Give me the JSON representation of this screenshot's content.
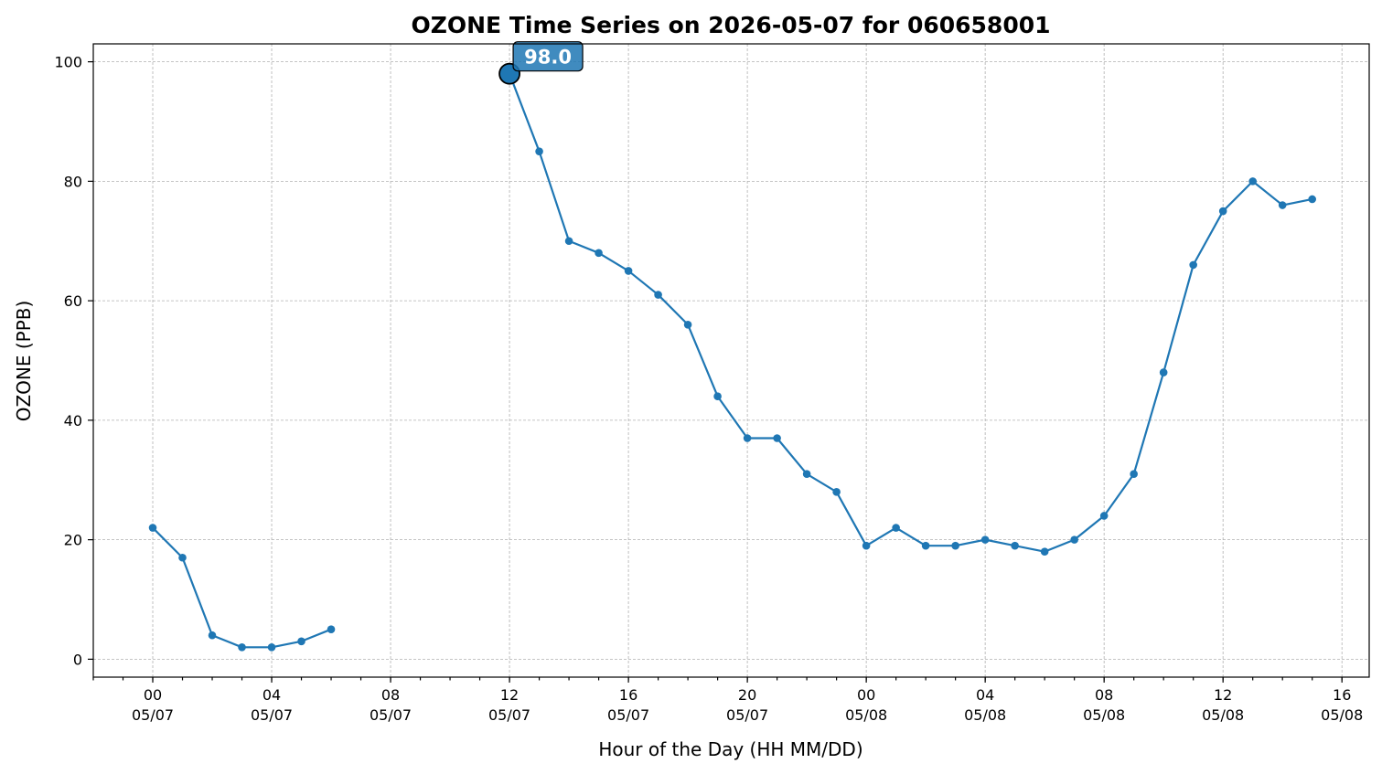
{
  "chart_data": {
    "type": "line",
    "title": "OZONE Time Series on 2026-05-07 for 060658001",
    "xlabel": "Hour of the Day (HH MM/DD)",
    "ylabel": "OZONE (PPB)",
    "ylim": [
      -3,
      103
    ],
    "xlim": [
      "2026-05-06 22:00",
      "2026-05-08 16:55"
    ],
    "yticks": [
      0,
      20,
      40,
      60,
      80,
      100
    ],
    "xticks": [
      {
        "x": "2026-05-07 00:00",
        "hour": "00",
        "date": "05/07"
      },
      {
        "x": "2026-05-07 04:00",
        "hour": "04",
        "date": "05/07"
      },
      {
        "x": "2026-05-07 08:00",
        "hour": "08",
        "date": "05/07"
      },
      {
        "x": "2026-05-07 12:00",
        "hour": "12",
        "date": "05/07"
      },
      {
        "x": "2026-05-07 16:00",
        "hour": "16",
        "date": "05/07"
      },
      {
        "x": "2026-05-07 20:00",
        "hour": "20",
        "date": "05/07"
      },
      {
        "x": "2026-05-08 00:00",
        "hour": "00",
        "date": "05/08"
      },
      {
        "x": "2026-05-08 04:00",
        "hour": "04",
        "date": "05/08"
      },
      {
        "x": "2026-05-08 08:00",
        "hour": "08",
        "date": "05/08"
      },
      {
        "x": "2026-05-08 12:00",
        "hour": "12",
        "date": "05/08"
      },
      {
        "x": "2026-05-08 16:00",
        "hour": "16",
        "date": "05/08"
      }
    ],
    "grid": true,
    "color": "#1f77b4",
    "segments": [
      {
        "x": [
          "2026-05-07 00:00",
          "2026-05-07 01:00",
          "2026-05-07 02:00",
          "2026-05-07 03:00",
          "2026-05-07 04:00",
          "2026-05-07 05:00",
          "2026-05-07 06:00"
        ],
        "y": [
          22,
          17,
          4,
          2,
          2,
          3,
          5
        ]
      },
      {
        "x": [
          "2026-05-07 12:00",
          "2026-05-07 13:00",
          "2026-05-07 14:00",
          "2026-05-07 15:00",
          "2026-05-07 16:00",
          "2026-05-07 17:00",
          "2026-05-07 18:00",
          "2026-05-07 19:00",
          "2026-05-07 20:00",
          "2026-05-07 21:00",
          "2026-05-07 22:00",
          "2026-05-07 23:00",
          "2026-05-08 00:00",
          "2026-05-08 01:00",
          "2026-05-08 02:00",
          "2026-05-08 03:00",
          "2026-05-08 04:00",
          "2026-05-08 05:00",
          "2026-05-08 06:00",
          "2026-05-08 07:00",
          "2026-05-08 08:00",
          "2026-05-08 09:00",
          "2026-05-08 10:00",
          "2026-05-08 11:00",
          "2026-05-08 12:00",
          "2026-05-08 13:00",
          "2026-05-08 14:00",
          "2026-05-08 15:00"
        ],
        "y": [
          98,
          85,
          70,
          68,
          65,
          61,
          56,
          44,
          37,
          37,
          31,
          28,
          19,
          22,
          19,
          19,
          20,
          19,
          18,
          20,
          24,
          31,
          48,
          66,
          75,
          80,
          76,
          77
        ]
      }
    ],
    "peak": {
      "x": "2026-05-07 12:00",
      "y": 98,
      "label": "98.0"
    }
  }
}
